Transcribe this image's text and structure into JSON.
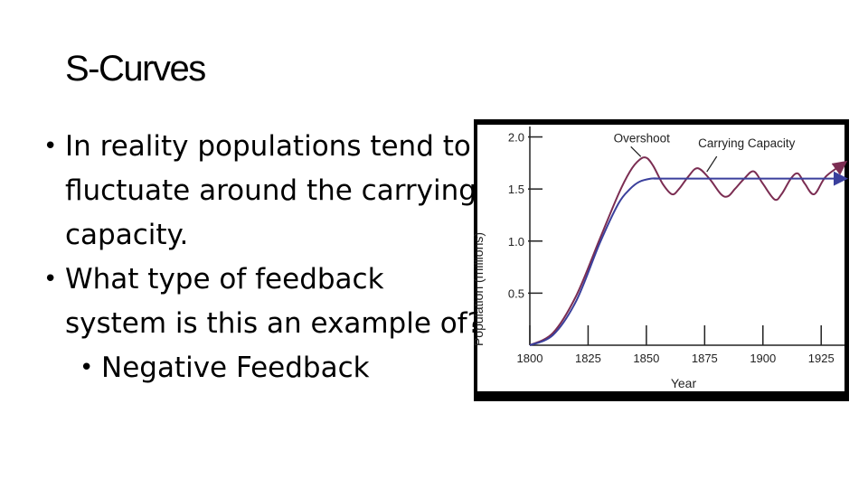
{
  "slide": {
    "title": "S-Curves",
    "bullets": [
      {
        "text": "In reality populations tend to fluctuate around the carrying capacity.",
        "level": 1
      },
      {
        "text": "What type of feedback system is this an example of?",
        "level": 1
      },
      {
        "text": "Negative Feedback",
        "level": 2
      }
    ]
  },
  "chart_data": {
    "type": "line",
    "xlabel": "Year",
    "ylabel": "Population (millions)",
    "xlim": [
      1800,
      1935
    ],
    "ylim": [
      0,
      2.1
    ],
    "x_ticks": [
      1800,
      1825,
      1850,
      1875,
      1900,
      1925
    ],
    "y_ticks": [
      "0.5",
      "1.0",
      "1.5",
      "2.0"
    ],
    "y_tick_values": [
      0.5,
      1.0,
      1.5,
      2.0
    ],
    "grid": false,
    "series": [
      {
        "color": "#7b2d52",
        "x": [
          1800,
          1810,
          1820,
          1830,
          1838,
          1843,
          1847,
          1850,
          1853,
          1857,
          1861,
          1864,
          1868,
          1872,
          1877,
          1882,
          1885,
          1888,
          1892,
          1896,
          1900,
          1905,
          1908,
          1912,
          1915,
          1918,
          1922,
          1927,
          1935
        ],
        "y": [
          0.0,
          0.12,
          0.48,
          1.02,
          1.45,
          1.67,
          1.78,
          1.8,
          1.72,
          1.55,
          1.45,
          1.5,
          1.62,
          1.7,
          1.6,
          1.45,
          1.43,
          1.5,
          1.6,
          1.67,
          1.55,
          1.4,
          1.45,
          1.6,
          1.65,
          1.55,
          1.45,
          1.62,
          1.75
        ]
      },
      {
        "color": "#3a3f9c",
        "x": [
          1800,
          1810,
          1820,
          1830,
          1838,
          1843,
          1847,
          1852,
          1856,
          1860,
          1935
        ],
        "y": [
          0.0,
          0.1,
          0.43,
          0.98,
          1.36,
          1.5,
          1.57,
          1.6,
          1.6,
          1.6,
          1.6
        ]
      }
    ],
    "annotations": [
      {
        "text": "Overshoot",
        "x": 1848,
        "y": 1.95
      },
      {
        "text": "Carrying Capacity",
        "x": 1893,
        "y": 1.9
      }
    ]
  }
}
